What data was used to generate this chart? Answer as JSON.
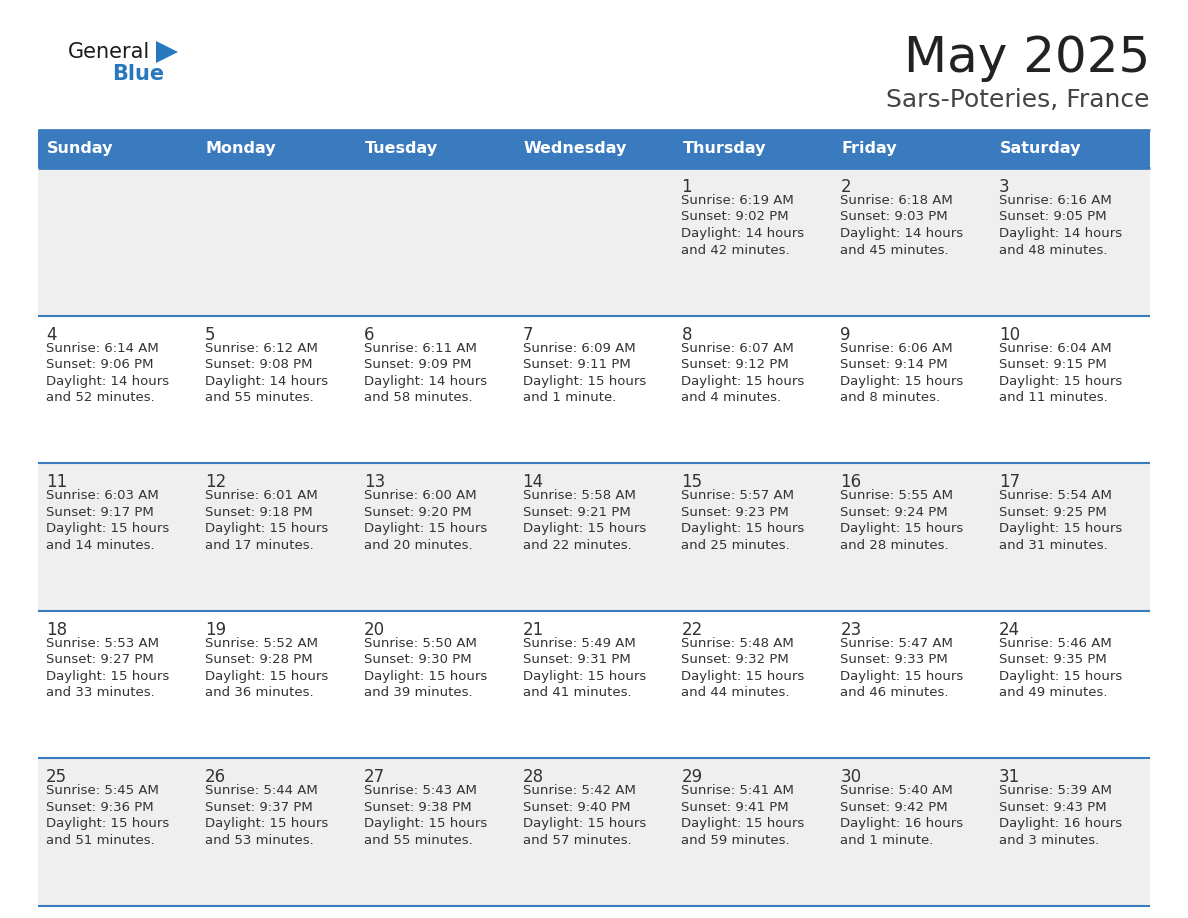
{
  "title": "May 2025",
  "subtitle": "Sars-Poteries, France",
  "header_bg": "#3a7bbf",
  "header_text": "#ffffff",
  "row_bg_odd": "#efefef",
  "row_bg_even": "#ffffff",
  "day_headers": [
    "Sunday",
    "Monday",
    "Tuesday",
    "Wednesday",
    "Thursday",
    "Friday",
    "Saturday"
  ],
  "title_color": "#222222",
  "subtitle_color": "#444444",
  "cell_border_color": "#3a7bbf",
  "day_number_color": "#333333",
  "cell_text_color": "#333333",
  "logo_general_color": "#1a1a1a",
  "logo_blue_color": "#2878be",
  "logo_triangle_color": "#2878be",
  "days": [
    {
      "day": 1,
      "col": 4,
      "row": 0,
      "sunrise": "6:19 AM",
      "sunset": "9:02 PM",
      "daylight_line1": "Daylight: 14 hours",
      "daylight_line2": "and 42 minutes."
    },
    {
      "day": 2,
      "col": 5,
      "row": 0,
      "sunrise": "6:18 AM",
      "sunset": "9:03 PM",
      "daylight_line1": "Daylight: 14 hours",
      "daylight_line2": "and 45 minutes."
    },
    {
      "day": 3,
      "col": 6,
      "row": 0,
      "sunrise": "6:16 AM",
      "sunset": "9:05 PM",
      "daylight_line1": "Daylight: 14 hours",
      "daylight_line2": "and 48 minutes."
    },
    {
      "day": 4,
      "col": 0,
      "row": 1,
      "sunrise": "6:14 AM",
      "sunset": "9:06 PM",
      "daylight_line1": "Daylight: 14 hours",
      "daylight_line2": "and 52 minutes."
    },
    {
      "day": 5,
      "col": 1,
      "row": 1,
      "sunrise": "6:12 AM",
      "sunset": "9:08 PM",
      "daylight_line1": "Daylight: 14 hours",
      "daylight_line2": "and 55 minutes."
    },
    {
      "day": 6,
      "col": 2,
      "row": 1,
      "sunrise": "6:11 AM",
      "sunset": "9:09 PM",
      "daylight_line1": "Daylight: 14 hours",
      "daylight_line2": "and 58 minutes."
    },
    {
      "day": 7,
      "col": 3,
      "row": 1,
      "sunrise": "6:09 AM",
      "sunset": "9:11 PM",
      "daylight_line1": "Daylight: 15 hours",
      "daylight_line2": "and 1 minute."
    },
    {
      "day": 8,
      "col": 4,
      "row": 1,
      "sunrise": "6:07 AM",
      "sunset": "9:12 PM",
      "daylight_line1": "Daylight: 15 hours",
      "daylight_line2": "and 4 minutes."
    },
    {
      "day": 9,
      "col": 5,
      "row": 1,
      "sunrise": "6:06 AM",
      "sunset": "9:14 PM",
      "daylight_line1": "Daylight: 15 hours",
      "daylight_line2": "and 8 minutes."
    },
    {
      "day": 10,
      "col": 6,
      "row": 1,
      "sunrise": "6:04 AM",
      "sunset": "9:15 PM",
      "daylight_line1": "Daylight: 15 hours",
      "daylight_line2": "and 11 minutes."
    },
    {
      "day": 11,
      "col": 0,
      "row": 2,
      "sunrise": "6:03 AM",
      "sunset": "9:17 PM",
      "daylight_line1": "Daylight: 15 hours",
      "daylight_line2": "and 14 minutes."
    },
    {
      "day": 12,
      "col": 1,
      "row": 2,
      "sunrise": "6:01 AM",
      "sunset": "9:18 PM",
      "daylight_line1": "Daylight: 15 hours",
      "daylight_line2": "and 17 minutes."
    },
    {
      "day": 13,
      "col": 2,
      "row": 2,
      "sunrise": "6:00 AM",
      "sunset": "9:20 PM",
      "daylight_line1": "Daylight: 15 hours",
      "daylight_line2": "and 20 minutes."
    },
    {
      "day": 14,
      "col": 3,
      "row": 2,
      "sunrise": "5:58 AM",
      "sunset": "9:21 PM",
      "daylight_line1": "Daylight: 15 hours",
      "daylight_line2": "and 22 minutes."
    },
    {
      "day": 15,
      "col": 4,
      "row": 2,
      "sunrise": "5:57 AM",
      "sunset": "9:23 PM",
      "daylight_line1": "Daylight: 15 hours",
      "daylight_line2": "and 25 minutes."
    },
    {
      "day": 16,
      "col": 5,
      "row": 2,
      "sunrise": "5:55 AM",
      "sunset": "9:24 PM",
      "daylight_line1": "Daylight: 15 hours",
      "daylight_line2": "and 28 minutes."
    },
    {
      "day": 17,
      "col": 6,
      "row": 2,
      "sunrise": "5:54 AM",
      "sunset": "9:25 PM",
      "daylight_line1": "Daylight: 15 hours",
      "daylight_line2": "and 31 minutes."
    },
    {
      "day": 18,
      "col": 0,
      "row": 3,
      "sunrise": "5:53 AM",
      "sunset": "9:27 PM",
      "daylight_line1": "Daylight: 15 hours",
      "daylight_line2": "and 33 minutes."
    },
    {
      "day": 19,
      "col": 1,
      "row": 3,
      "sunrise": "5:52 AM",
      "sunset": "9:28 PM",
      "daylight_line1": "Daylight: 15 hours",
      "daylight_line2": "and 36 minutes."
    },
    {
      "day": 20,
      "col": 2,
      "row": 3,
      "sunrise": "5:50 AM",
      "sunset": "9:30 PM",
      "daylight_line1": "Daylight: 15 hours",
      "daylight_line2": "and 39 minutes."
    },
    {
      "day": 21,
      "col": 3,
      "row": 3,
      "sunrise": "5:49 AM",
      "sunset": "9:31 PM",
      "daylight_line1": "Daylight: 15 hours",
      "daylight_line2": "and 41 minutes."
    },
    {
      "day": 22,
      "col": 4,
      "row": 3,
      "sunrise": "5:48 AM",
      "sunset": "9:32 PM",
      "daylight_line1": "Daylight: 15 hours",
      "daylight_line2": "and 44 minutes."
    },
    {
      "day": 23,
      "col": 5,
      "row": 3,
      "sunrise": "5:47 AM",
      "sunset": "9:33 PM",
      "daylight_line1": "Daylight: 15 hours",
      "daylight_line2": "and 46 minutes."
    },
    {
      "day": 24,
      "col": 6,
      "row": 3,
      "sunrise": "5:46 AM",
      "sunset": "9:35 PM",
      "daylight_line1": "Daylight: 15 hours",
      "daylight_line2": "and 49 minutes."
    },
    {
      "day": 25,
      "col": 0,
      "row": 4,
      "sunrise": "5:45 AM",
      "sunset": "9:36 PM",
      "daylight_line1": "Daylight: 15 hours",
      "daylight_line2": "and 51 minutes."
    },
    {
      "day": 26,
      "col": 1,
      "row": 4,
      "sunrise": "5:44 AM",
      "sunset": "9:37 PM",
      "daylight_line1": "Daylight: 15 hours",
      "daylight_line2": "and 53 minutes."
    },
    {
      "day": 27,
      "col": 2,
      "row": 4,
      "sunrise": "5:43 AM",
      "sunset": "9:38 PM",
      "daylight_line1": "Daylight: 15 hours",
      "daylight_line2": "and 55 minutes."
    },
    {
      "day": 28,
      "col": 3,
      "row": 4,
      "sunrise": "5:42 AM",
      "sunset": "9:40 PM",
      "daylight_line1": "Daylight: 15 hours",
      "daylight_line2": "and 57 minutes."
    },
    {
      "day": 29,
      "col": 4,
      "row": 4,
      "sunrise": "5:41 AM",
      "sunset": "9:41 PM",
      "daylight_line1": "Daylight: 15 hours",
      "daylight_line2": "and 59 minutes."
    },
    {
      "day": 30,
      "col": 5,
      "row": 4,
      "sunrise": "5:40 AM",
      "sunset": "9:42 PM",
      "daylight_line1": "Daylight: 16 hours",
      "daylight_line2": "and 1 minute."
    },
    {
      "day": 31,
      "col": 6,
      "row": 4,
      "sunrise": "5:39 AM",
      "sunset": "9:43 PM",
      "daylight_line1": "Daylight: 16 hours",
      "daylight_line2": "and 3 minutes."
    }
  ]
}
